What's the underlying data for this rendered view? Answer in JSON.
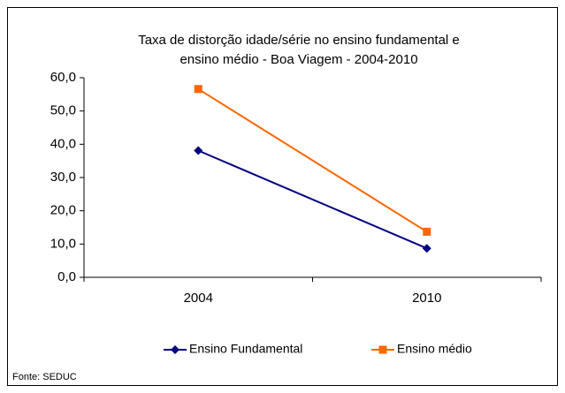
{
  "chart_data": {
    "type": "line",
    "title": [
      "Taxa de distorção idade/série no ensino fundamental e",
      "ensino médio - Boa Viagem - 2004-2010"
    ],
    "categories": [
      "2004",
      "2010"
    ],
    "series": [
      {
        "name": "Ensino Fundamental",
        "color": "#000080",
        "marker": "diamond",
        "values": [
          38.1,
          8.7
        ]
      },
      {
        "name": "Ensino médio",
        "color": "#ff6600",
        "marker": "square",
        "values": [
          56.6,
          13.7
        ]
      }
    ],
    "ylim": [
      0,
      60
    ],
    "yticks": [
      {
        "value": 0,
        "label": "0,0"
      },
      {
        "value": 10,
        "label": "10,0"
      },
      {
        "value": 20,
        "label": "20,0"
      },
      {
        "value": 30,
        "label": "30,0"
      },
      {
        "value": 40,
        "label": "40,0"
      },
      {
        "value": 50,
        "label": "50,0"
      },
      {
        "value": 60,
        "label": "60,0"
      }
    ],
    "grid": false,
    "legend": "bottom",
    "source": "Fonte: SEDUC"
  }
}
